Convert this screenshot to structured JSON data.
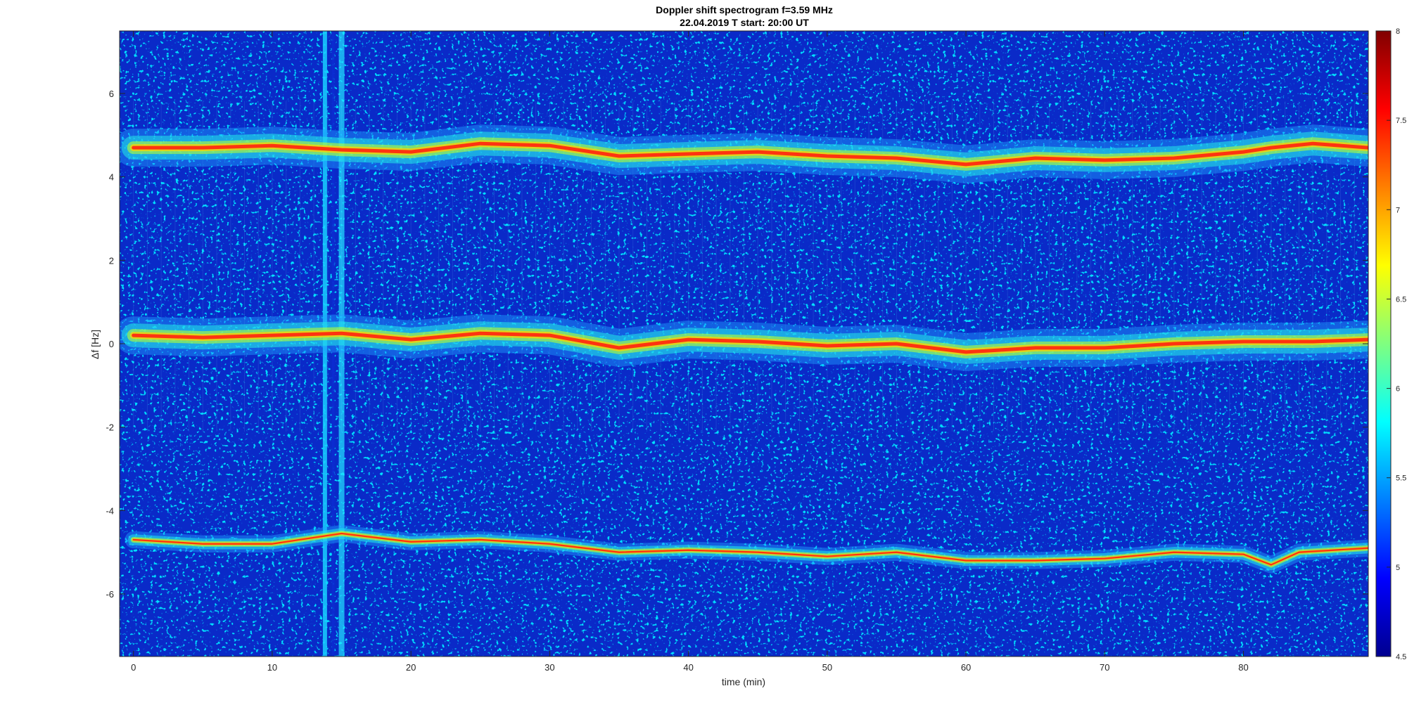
{
  "figure": {
    "title_line1": "Doppler shift spectrogram f=3.59 MHz",
    "title_line2": "22.04.2019   T start: 20:00 UT"
  },
  "chart_data": {
    "type": "heatmap",
    "title": "Doppler shift spectrogram f=3.59 MHz",
    "subtitle": "22.04.2019   T start: 20:00 UT",
    "xlabel": "time (min)",
    "ylabel": "Δf [Hz]",
    "xlim": [
      -1,
      89
    ],
    "ylim": [
      -7.5,
      7.5
    ],
    "xticks": [
      0,
      10,
      20,
      30,
      40,
      50,
      60,
      70,
      80
    ],
    "yticks": [
      -6,
      -4,
      -2,
      0,
      2,
      4,
      6
    ],
    "colormap": "jet",
    "colorbar": {
      "range": [
        4.5,
        8
      ],
      "ticks": [
        "4.5",
        "5",
        "5.5",
        "6",
        "6.5",
        "7",
        "7.5",
        "8"
      ]
    },
    "series": [
      {
        "x": [
          0,
          5,
          10,
          15,
          20,
          25,
          30,
          35,
          40,
          45,
          50,
          55,
          60,
          65,
          70,
          75,
          80,
          82,
          85,
          89
        ],
        "y": [
          4.7,
          4.7,
          4.75,
          4.65,
          4.6,
          4.8,
          4.75,
          4.5,
          4.55,
          4.6,
          4.5,
          4.45,
          4.3,
          4.45,
          4.4,
          4.45,
          4.6,
          4.7,
          4.8,
          4.7
        ]
      },
      {
        "x": [
          0,
          5,
          10,
          15,
          20,
          25,
          30,
          35,
          40,
          45,
          50,
          55,
          60,
          65,
          70,
          75,
          80,
          85,
          89
        ],
        "y": [
          0.2,
          0.15,
          0.2,
          0.25,
          0.1,
          0.25,
          0.2,
          -0.1,
          0.1,
          0.05,
          -0.05,
          0.0,
          -0.2,
          -0.1,
          -0.1,
          0.0,
          0.05,
          0.05,
          0.1
        ]
      },
      {
        "x": [
          0,
          5,
          10,
          14,
          15,
          20,
          25,
          30,
          35,
          40,
          45,
          50,
          55,
          60,
          65,
          70,
          75,
          80,
          82,
          84,
          89
        ],
        "y": [
          -4.7,
          -4.8,
          -4.8,
          -4.6,
          -4.55,
          -4.75,
          -4.7,
          -4.8,
          -5.0,
          -4.95,
          -5.0,
          -5.1,
          -5.0,
          -5.2,
          -5.2,
          -5.15,
          -5.0,
          -5.05,
          -5.3,
          -5.0,
          -4.9
        ]
      }
    ]
  }
}
